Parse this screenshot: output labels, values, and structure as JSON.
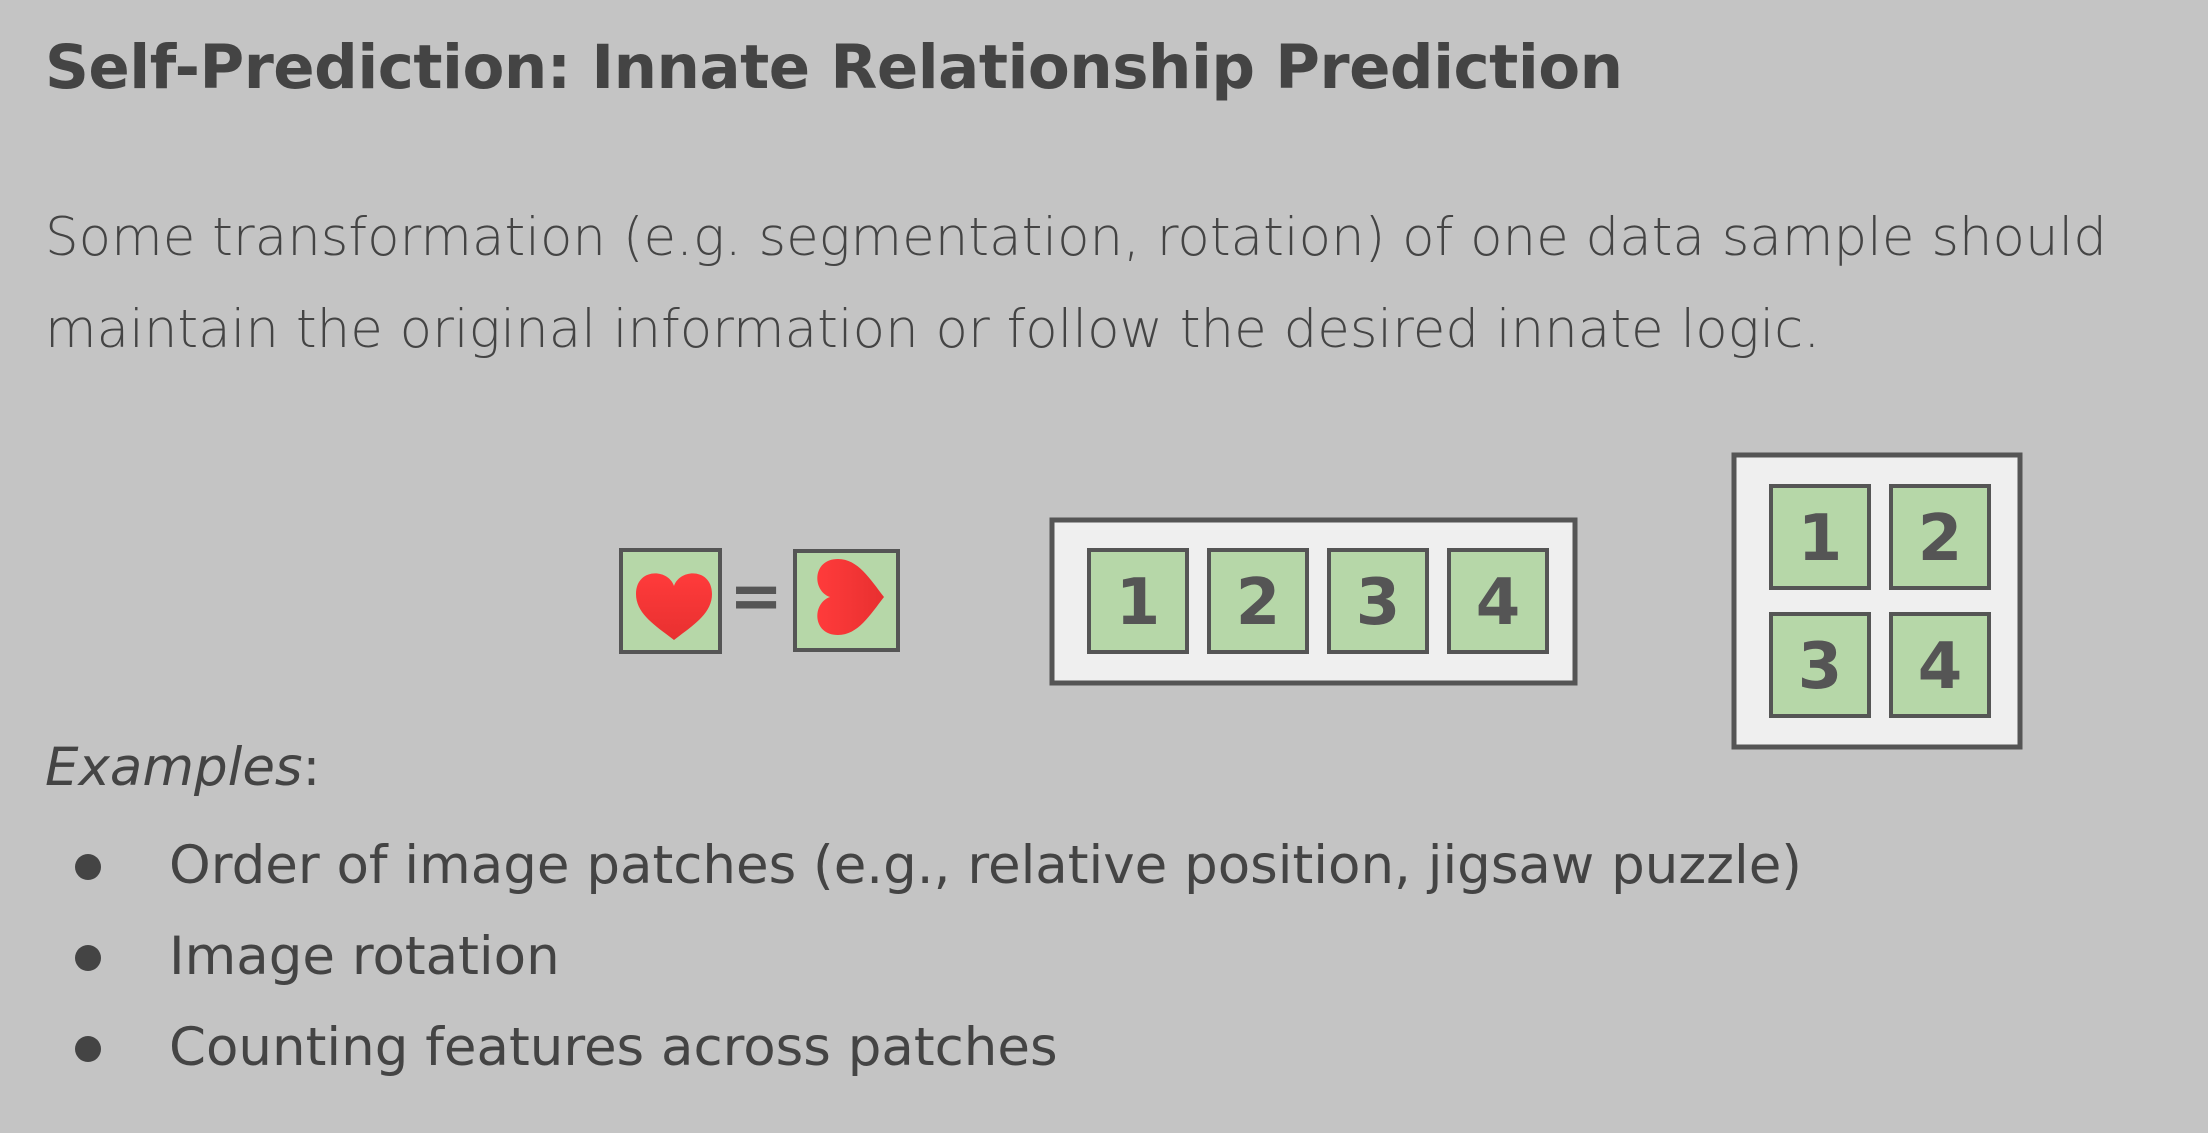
{
  "slide": {
    "title": "Self-Prediction: Innate Relationship Prediction",
    "description_lines": [
      "Some transformation (e.g. segmentation, rotation) of one data sample should",
      "maintain the original information or follow the desired innate logic."
    ],
    "examples_label": "Examples",
    "examples_suffix": ":",
    "examples": [
      "Order of image patches (e.g., relative position, jigsaw puzzle)",
      "Image rotation",
      "Counting features across patches"
    ]
  },
  "diagram": {
    "equals_sign": "=",
    "row_patches": [
      "1",
      "2",
      "3",
      "4"
    ],
    "grid_patches": [
      "1",
      "2",
      "3",
      "4"
    ],
    "colors": {
      "background": "#c4c4c4",
      "patch_fill": "#b6d7a8",
      "patch_stroke": "#555555",
      "frame_fill": "#efefef",
      "heart_fill": "#ff3b3b",
      "text": "#444444"
    },
    "icons": [
      "heart-icon",
      "rotated-heart-icon"
    ]
  }
}
